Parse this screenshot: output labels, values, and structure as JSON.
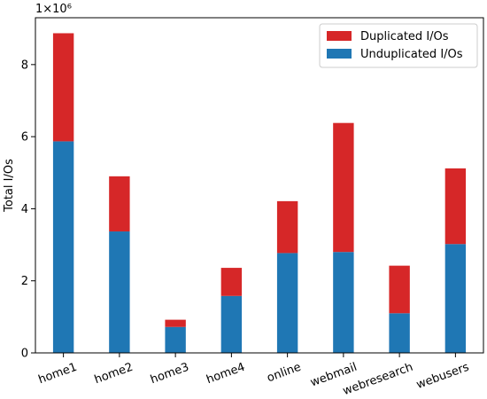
{
  "chart_data": {
    "type": "bar",
    "stacked": true,
    "title": "",
    "xlabel": "",
    "ylabel": "Total I/Os",
    "scale_label": "1×10⁶",
    "ylim": [
      0,
      9.3
    ],
    "yticks": [
      "0",
      "2",
      "4",
      "6",
      "8"
    ],
    "categories": [
      "home1",
      "home2",
      "home3",
      "home4",
      "online",
      "webmail",
      "webresearch",
      "webusers"
    ],
    "series": [
      {
        "name": "Unduplicated I/Os",
        "color": "#1f77b4",
        "values": [
          5.87,
          3.37,
          0.72,
          1.58,
          2.77,
          2.8,
          1.1,
          3.02
        ]
      },
      {
        "name": "Duplicated I/Os",
        "color": "#d62728",
        "values": [
          3.0,
          1.53,
          0.2,
          0.78,
          1.44,
          3.58,
          1.32,
          2.1
        ]
      }
    ],
    "legend": {
      "position": "top-right",
      "order": [
        "Duplicated I/Os",
        "Unduplicated I/Os"
      ]
    },
    "grid": false
  }
}
